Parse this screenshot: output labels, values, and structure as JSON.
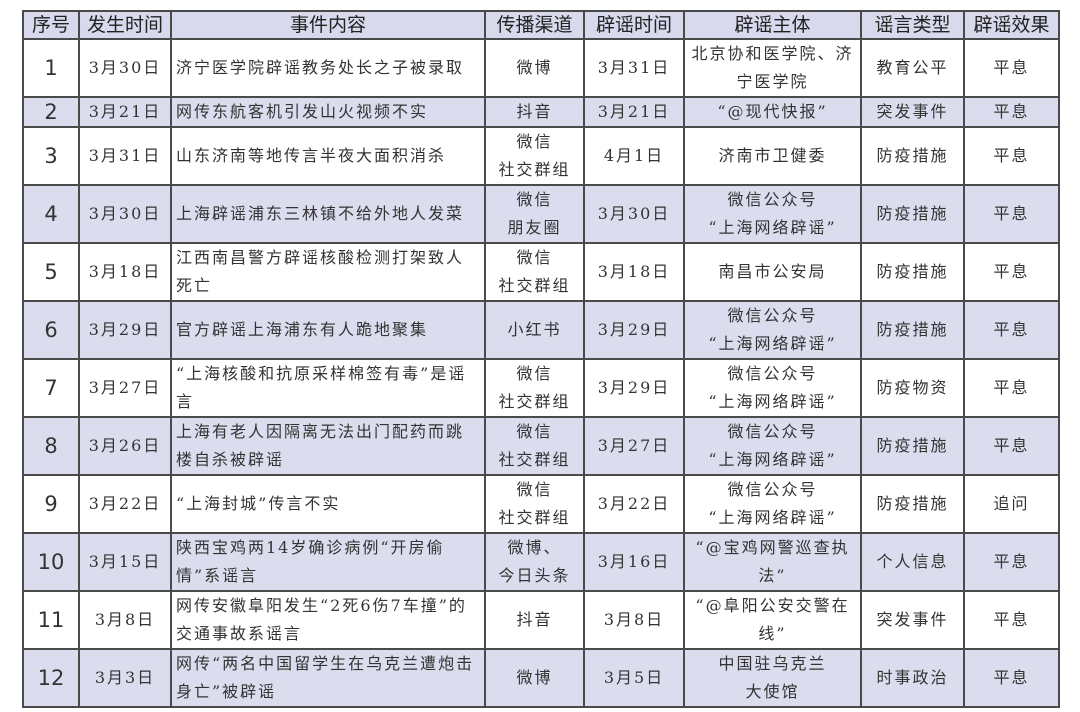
{
  "headers": [
    "序号",
    "发生时间",
    "事件内容",
    "传播渠道",
    "辟谣时间",
    "辟谣主体",
    "谣言类型",
    "辟谣效果"
  ],
  "rows": [
    {
      "no": "1",
      "date": "3月30日",
      "event": "济宁医学院辟谣教务处长之子被录取",
      "channel": "微博",
      "debunk_date": "3月31日",
      "subject": "北京协和医学院、济宁医学院",
      "type": "教育公平",
      "effect": "平息"
    },
    {
      "no": "2",
      "date": "3月21日",
      "event": "网传东航客机引发山火视频不实",
      "channel": "抖音",
      "debunk_date": "3月21日",
      "subject": "“@现代快报”",
      "type": "突发事件",
      "effect": "平息"
    },
    {
      "no": "3",
      "date": "3月31日",
      "event": "山东济南等地传言半夜大面积消杀",
      "channel": "微信 社交群组",
      "debunk_date": "4月1日",
      "subject": "济南市卫健委",
      "type": "防疫措施",
      "effect": "平息"
    },
    {
      "no": "4",
      "date": "3月30日",
      "event": "上海辟谣浦东三林镇不给外地人发菜",
      "channel": "微信 朋友圈",
      "debunk_date": "3月30日",
      "subject": "微信公众号 “上海网络辟谣”",
      "type": "防疫措施",
      "effect": "平息"
    },
    {
      "no": "5",
      "date": "3月18日",
      "event": "江西南昌警方辟谣核酸检测打架致人死亡",
      "channel": "微信 社交群组",
      "debunk_date": "3月18日",
      "subject": "南昌市公安局",
      "type": "防疫措施",
      "effect": "平息"
    },
    {
      "no": "6",
      "date": "3月29日",
      "event": "官方辟谣上海浦东有人跪地聚集",
      "channel": "小红书",
      "debunk_date": "3月29日",
      "subject": "微信公众号 “上海网络辟谣”",
      "type": "防疫措施",
      "effect": "平息"
    },
    {
      "no": "7",
      "date": "3月27日",
      "event": "“上海核酸和抗原采样棉签有毒”是谣言",
      "channel": "微信 社交群组",
      "debunk_date": "3月29日",
      "subject": "微信公众号 “上海网络辟谣”",
      "type": "防疫物资",
      "effect": "平息"
    },
    {
      "no": "8",
      "date": "3月26日",
      "event": "上海有老人因隔离无法出门配药而跳楼自杀被辟谣",
      "channel": "微信 社交群组",
      "debunk_date": "3月27日",
      "subject": "微信公众号 “上海网络辟谣”",
      "type": "防疫措施",
      "effect": "平息"
    },
    {
      "no": "9",
      "date": "3月22日",
      "event": "“上海封城”传言不实",
      "channel": "微信 社交群组",
      "debunk_date": "3月22日",
      "subject": "微信公众号 “上海网络辟谣”",
      "type": "防疫措施",
      "effect": "追问"
    },
    {
      "no": "10",
      "date": "3月15日",
      "event": "陕西宝鸡两14岁确诊病例“开房偷情”系谣言",
      "channel": "微博、 今日头条",
      "debunk_date": "3月16日",
      "subject": "“@宝鸡网警巡查执法”",
      "type": "个人信息",
      "effect": "平息"
    },
    {
      "no": "11",
      "date": "3月8日",
      "event": "网传安徽阜阳发生“2死6伤7车撞”的交通事故系谣言",
      "channel": "抖音",
      "debunk_date": "3月8日",
      "subject": "“@阜阳公安交警在线”",
      "type": "突发事件",
      "effect": "平息"
    },
    {
      "no": "12",
      "date": "3月3日",
      "event": "网传“两名中国留学生在乌克兰遭炮击身亡”被辟谣",
      "channel": "微博",
      "debunk_date": "3月5日",
      "subject": "中国驻乌克兰 大使馆",
      "type": "时事政治",
      "effect": "平息"
    }
  ],
  "colors": {
    "header_bg": "#d9d9ee",
    "shade_bg": "#dcdcef",
    "border": "#4a4a4a"
  }
}
